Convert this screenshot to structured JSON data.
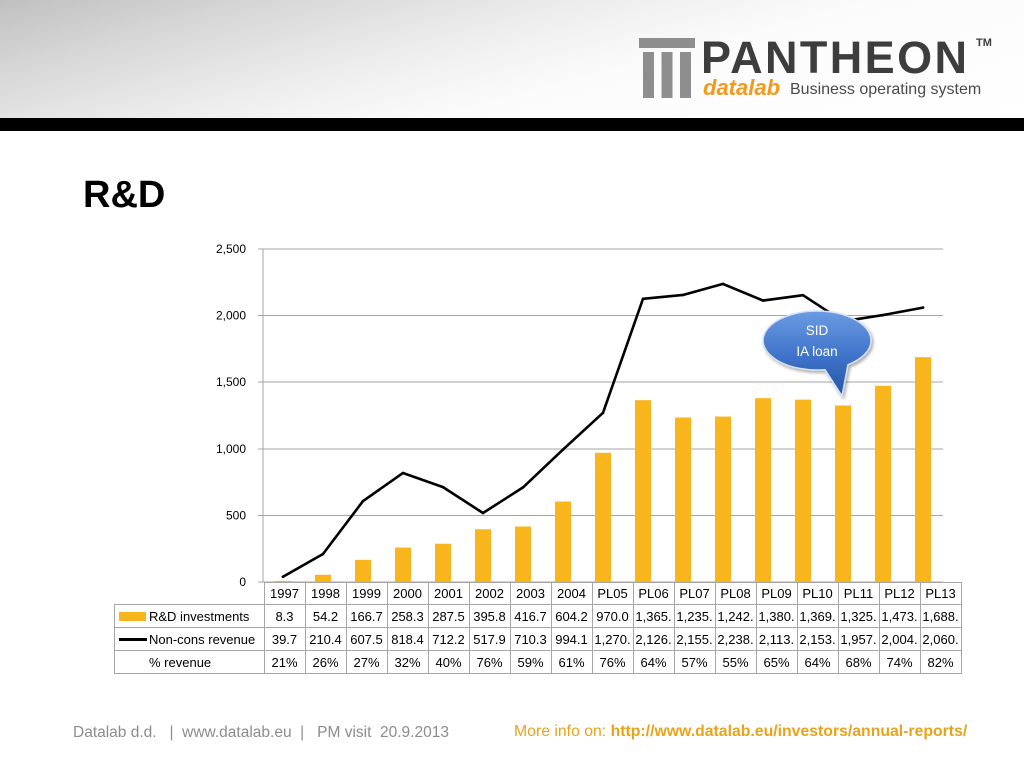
{
  "header": {
    "logo": {
      "icon": "pantheon-columns-icon",
      "brand": "PANTHEON",
      "trademark": "TM",
      "sub_brand": "datalab",
      "tagline": "Business operating system"
    }
  },
  "slide": {
    "title": "R&D"
  },
  "chart_data": {
    "type": "bar",
    "categories": [
      "1997",
      "1998",
      "1999",
      "2000",
      "2001",
      "2002",
      "2003",
      "2004",
      "PL05",
      "PL06",
      "PL07",
      "PL08",
      "PL09",
      "PL10",
      "PL11",
      "PL12",
      "PL13"
    ],
    "series": [
      {
        "name": "R&D investments",
        "type": "bar",
        "color": "#F9B51C",
        "values": [
          8.3,
          54.2,
          166.7,
          258.3,
          287.5,
          395.8,
          416.7,
          604.2,
          970.0,
          1365,
          1235,
          1242,
          1380,
          1369,
          1325,
          1473,
          1688
        ],
        "labels": [
          "8.3",
          "54.2",
          "166.7",
          "258.3",
          "287.5",
          "395.8",
          "416.7",
          "604.2",
          "970.0",
          "1,365.",
          "1,235.",
          "1,242.",
          "1,380.",
          "1,369.",
          "1,325.",
          "1,473.",
          "1,688."
        ]
      },
      {
        "name": "Non-cons revenue",
        "type": "line",
        "color": "#000000",
        "values": [
          39.7,
          210.4,
          607.5,
          818.4,
          712.2,
          517.9,
          710.3,
          994.1,
          1270,
          2126,
          2155,
          2238,
          2113,
          2153,
          1957,
          2004,
          2060
        ],
        "labels": [
          "39.7",
          "210.4",
          "607.5",
          "818.4",
          "712.2",
          "517.9",
          "710.3",
          "994.1",
          "1,270.",
          "2,126.",
          "2,155.",
          "2,238.",
          "2,113.",
          "2,153.",
          "1,957.",
          "2,004.",
          "2,060."
        ]
      },
      {
        "name": "% revenue",
        "type": "table",
        "plotted": false,
        "values": [
          21,
          26,
          27,
          32,
          40,
          76,
          59,
          61,
          76,
          64,
          57,
          55,
          65,
          64,
          68,
          74,
          82
        ],
        "labels": [
          "21%",
          "26%",
          "27%",
          "32%",
          "40%",
          "76%",
          "59%",
          "61%",
          "76%",
          "64%",
          "57%",
          "55%",
          "65%",
          "64%",
          "68%",
          "74%",
          "82%"
        ]
      }
    ],
    "ylim": [
      0,
      2500
    ],
    "yticks": [
      0,
      500,
      1000,
      1500,
      2000,
      2500
    ],
    "ytick_labels": [
      "0",
      "500",
      "1,000",
      "1,500",
      "2,000",
      "2,500"
    ],
    "grid": true,
    "legend": "bottom",
    "annotations": [
      {
        "lines": [
          "SID",
          "IA loan"
        ],
        "color": "#2C62BA"
      }
    ]
  },
  "footer": {
    "left_text": "Datalab d.d.   |  www.datalab.eu  |   PM visit  20.9.2013",
    "more_info_label": "More info on:",
    "more_info_link": "http://www.datalab.eu/investors/annual-reports/"
  },
  "theme": {
    "accent": "#E9A31B",
    "logo_orange": "#F39A1E",
    "footer_gray": "#8C8C8C",
    "header_rule": "#000000"
  }
}
